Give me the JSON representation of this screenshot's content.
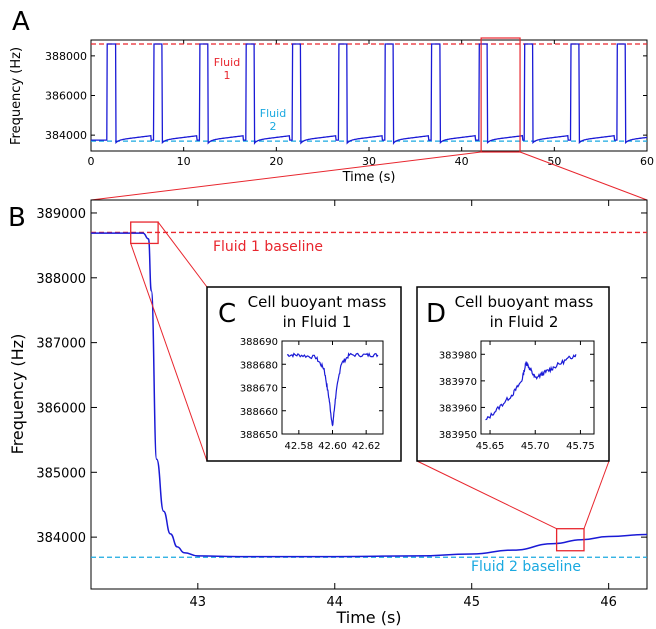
{
  "panels": {
    "A": {
      "letter": "A",
      "xlabel": "Time (s)",
      "ylabel": "Frequency (Hz)",
      "xlim": [
        0,
        60
      ],
      "ylim": [
        383200,
        388800
      ],
      "xticks": [
        0,
        10,
        20,
        30,
        40,
        50,
        60
      ],
      "yticks": [
        384000,
        386000,
        388000
      ],
      "fluid1": {
        "label_line1": "Fluid",
        "label_line2": "1",
        "level": 388600,
        "color": "#e8262e"
      },
      "fluid2": {
        "label_line1": "Fluid",
        "label_line2": "2",
        "level": 383700,
        "color": "#1aa9e0"
      },
      "highlight": {
        "x": [
          42.1,
          46.3
        ],
        "color": "#e8262e"
      }
    },
    "B": {
      "letter": "B",
      "xlabel": "Time (s)",
      "ylabel": "Frequency (Hz)",
      "xlim": [
        42.22,
        46.28
      ],
      "ylim": [
        383200,
        389200
      ],
      "xticks": [
        43,
        44,
        45,
        46
      ],
      "yticks": [
        384000,
        385000,
        386000,
        387000,
        388000,
        389000
      ],
      "fluid1_baseline": {
        "label": "Fluid 1 baseline",
        "level": 388700,
        "color": "#e8262e"
      },
      "fluid2_baseline": {
        "label": "Fluid 2 baseline",
        "level": 383690,
        "color": "#1aa9e0"
      },
      "zoom_boxes": [
        {
          "x": [
            42.51,
            42.71
          ],
          "y": [
            388530,
            388860
          ]
        },
        {
          "x": [
            45.62,
            45.82
          ],
          "y": [
            383790,
            384130
          ]
        }
      ]
    },
    "C": {
      "letter": "C",
      "title_line1": "Cell buoyant mass",
      "title_line2": "in Fluid 1",
      "xlim": [
        42.57,
        42.63
      ],
      "ylim": [
        388650,
        388690
      ],
      "xticks": [
        "42.58",
        "42.60",
        "42.62"
      ],
      "yticks": [
        "388650",
        "388660",
        "388670",
        "388680",
        "388690"
      ]
    },
    "D": {
      "letter": "D",
      "title_line1": "Cell buoyant mass",
      "title_line2": "in Fluid 2",
      "xlim": [
        45.64,
        45.765
      ],
      "ylim": [
        383950,
        383985
      ],
      "xticks": [
        "45.65",
        "45.70",
        "45.75"
      ],
      "yticks": [
        "383950",
        "383960",
        "383970",
        "383980"
      ]
    }
  },
  "colors": {
    "trace": "#1a1ad6",
    "box": "#e8262e"
  },
  "chart_data": [
    {
      "type": "line",
      "panel": "A",
      "xlabel": "Time (s)",
      "ylabel": "Frequency (Hz)",
      "xlim": [
        0,
        60
      ],
      "ylim": [
        383200,
        388800
      ],
      "peak_times": [
        2.2,
        7.2,
        12.2,
        17.2,
        22.2,
        27.2,
        32.2,
        37.2,
        42.3,
        47.2,
        52.2,
        57.2
      ],
      "peak_width_s": 0.9,
      "high_level": 388600,
      "low_level": 383750
    },
    {
      "type": "line",
      "panel": "B",
      "xlabel": "Time (s)",
      "ylabel": "Frequency (Hz)",
      "series": [
        {
          "x": [
            42.22,
            42.6,
            42.64,
            42.66,
            42.7,
            42.75,
            42.8,
            42.85,
            42.9,
            43.0,
            43.3,
            44.0,
            44.6,
            45.0,
            45.3,
            45.6,
            45.8,
            46.0,
            46.28
          ],
          "y": [
            388690,
            388690,
            388600,
            387800,
            385200,
            384400,
            384050,
            383850,
            383760,
            383710,
            383700,
            383700,
            383710,
            383740,
            383800,
            383900,
            383960,
            384010,
            384040
          ]
        }
      ]
    },
    {
      "type": "line",
      "panel": "C",
      "series": [
        {
          "x": [
            42.573,
            42.58,
            42.59,
            42.595,
            42.598,
            42.6,
            42.602,
            42.605,
            42.61,
            42.62,
            42.627
          ],
          "y": [
            388684,
            388684,
            388683,
            388678,
            388665,
            388653,
            388667,
            388680,
            388684,
            388684,
            388684
          ]
        }
      ]
    },
    {
      "type": "line",
      "panel": "D",
      "series": [
        {
          "x": [
            45.645,
            45.66,
            45.675,
            45.685,
            45.69,
            45.695,
            45.7,
            45.71,
            45.72,
            45.735,
            45.745
          ],
          "y": [
            383955,
            383960,
            383965,
            383970,
            383977,
            383974,
            383971,
            383973,
            383975,
            383978,
            383980
          ]
        }
      ]
    }
  ]
}
